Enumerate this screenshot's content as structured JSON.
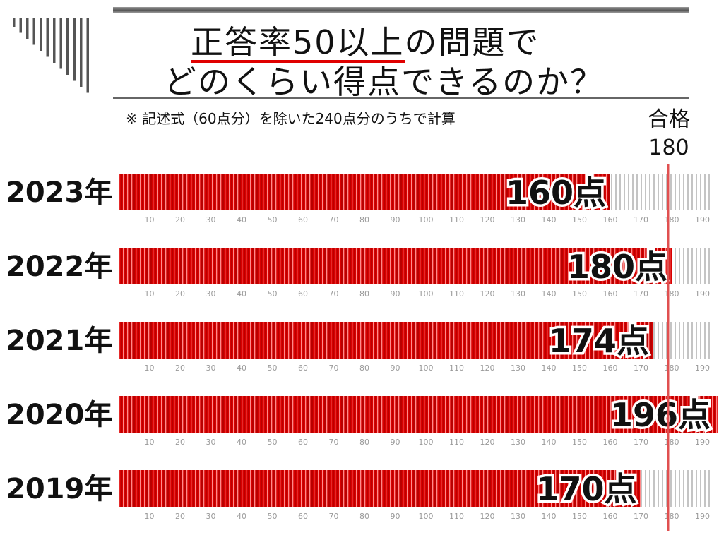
{
  "title": {
    "highlight": "正答率50以上",
    "line1_rest": "の問題で",
    "line2": "どのくらい得点できるのか？"
  },
  "note": "※ 記述式（60点分）を除いた240点分のうちで計算",
  "pass_line": {
    "label": "合格",
    "value_text": "180"
  },
  "colors": {
    "bar": "#d80000",
    "pass_line": "#e05050",
    "empty_stripe": "#bbbbbb"
  },
  "chart_data": {
    "type": "bar",
    "orientation": "horizontal",
    "categories": [
      "2023年",
      "2022年",
      "2021年",
      "2020年",
      "2019年"
    ],
    "values": [
      160,
      180,
      174,
      196,
      170
    ],
    "value_labels": [
      "160点",
      "180点",
      "174点",
      "196点",
      "170点"
    ],
    "xlim": [
      0,
      196
    ],
    "tick_values": [
      10,
      20,
      30,
      40,
      50,
      60,
      70,
      80,
      90,
      100,
      110,
      120,
      130,
      140,
      150,
      160,
      170,
      180,
      190
    ],
    "reference_line": 180
  }
}
